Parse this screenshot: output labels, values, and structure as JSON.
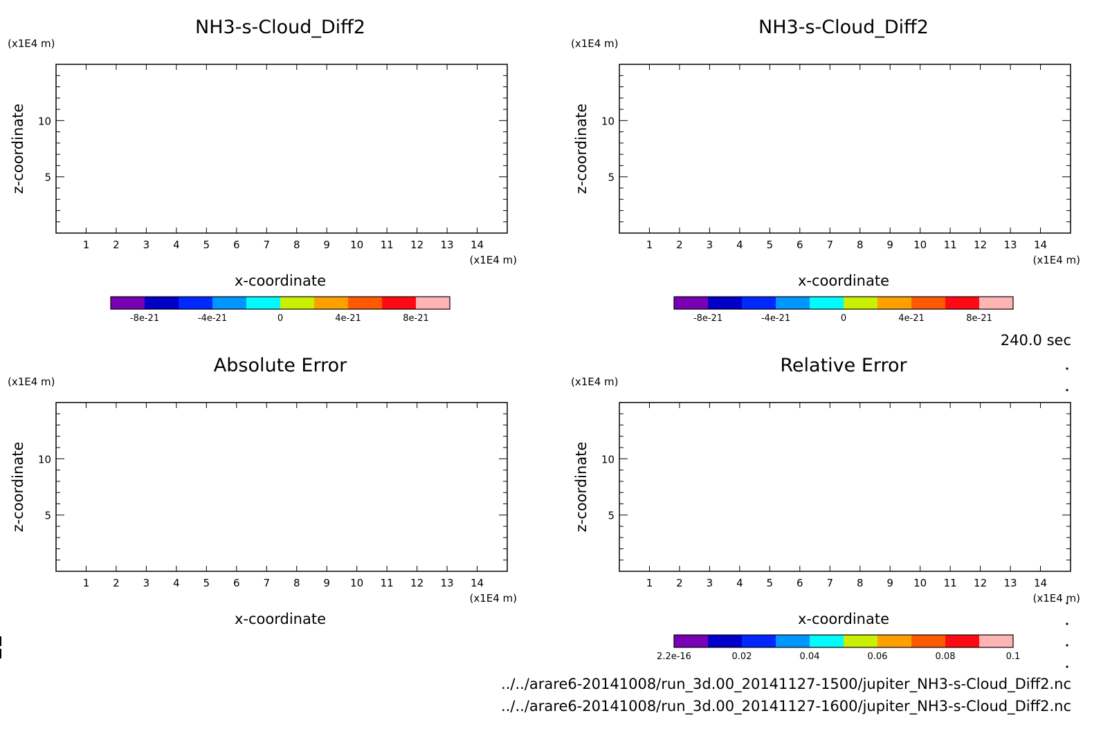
{
  "time_label": "240.0 sec",
  "files": [
    "../../arare6-20141008/run_3d.00_20141127-1500/jupiter_NH3-s-Cloud_Diff2.nc",
    "../../arare6-20141008/run_3d.00_20141127-1600/jupiter_NH3-s-Cloud_Diff2.nc"
  ],
  "colorbar_colors": [
    "#7a00b4",
    "#0000c8",
    "#0028ff",
    "#0096ff",
    "#00fcff",
    "#c8f000",
    "#ffa000",
    "#ff5a00",
    "#ff0a14",
    "#ffb4b4"
  ],
  "chart_data": [
    {
      "type": "heatmap",
      "title": "NH3-s-Cloud_Diff2",
      "xlabel": "x-coordinate",
      "ylabel": "z-coordinate",
      "x_unit": "(x1E4 m)",
      "y_unit": "(x1E4 m)",
      "xlim": [
        0,
        15
      ],
      "ylim": [
        0,
        15
      ],
      "xticks": [
        1,
        2,
        3,
        4,
        5,
        6,
        7,
        8,
        9,
        10,
        11,
        12,
        13,
        14
      ],
      "yticks": [
        5,
        10
      ],
      "colorbar": {
        "ticks": [
          "-8e-21",
          "-4e-21",
          "0",
          "4e-21",
          "8e-21"
        ]
      },
      "values": []
    },
    {
      "type": "heatmap",
      "title": "NH3-s-Cloud_Diff2",
      "xlabel": "x-coordinate",
      "ylabel": "z-coordinate",
      "x_unit": "(x1E4 m)",
      "y_unit": "(x1E4 m)",
      "xlim": [
        0,
        15
      ],
      "ylim": [
        0,
        15
      ],
      "xticks": [
        1,
        2,
        3,
        4,
        5,
        6,
        7,
        8,
        9,
        10,
        11,
        12,
        13,
        14
      ],
      "yticks": [
        5,
        10
      ],
      "colorbar": {
        "ticks": [
          "-8e-21",
          "-4e-21",
          "0",
          "4e-21",
          "8e-21"
        ]
      },
      "values": []
    },
    {
      "type": "heatmap",
      "title": "Absolute Error",
      "xlabel": "x-coordinate",
      "ylabel": "z-coordinate",
      "x_unit": "(x1E4 m)",
      "y_unit": "(x1E4 m)",
      "xlim": [
        0,
        15
      ],
      "ylim": [
        0,
        15
      ],
      "xticks": [
        1,
        2,
        3,
        4,
        5,
        6,
        7,
        8,
        9,
        10,
        11,
        12,
        13,
        14
      ],
      "yticks": [
        5,
        10
      ],
      "values": []
    },
    {
      "type": "heatmap",
      "title": "Relative Error",
      "xlabel": "x-coordinate",
      "ylabel": "z-coordinate",
      "x_unit": "(x1E4 m)",
      "y_unit": "(x1E4 m)",
      "xlim": [
        0,
        15
      ],
      "ylim": [
        0,
        15
      ],
      "xticks": [
        1,
        2,
        3,
        4,
        5,
        6,
        7,
        8,
        9,
        10,
        11,
        12,
        13,
        14
      ],
      "yticks": [
        5,
        10
      ],
      "colorbar": {
        "ticks": [
          "2.2e-16",
          "0.02",
          "0.04",
          "0.06",
          "0.08",
          "0.1"
        ]
      },
      "values": []
    }
  ]
}
